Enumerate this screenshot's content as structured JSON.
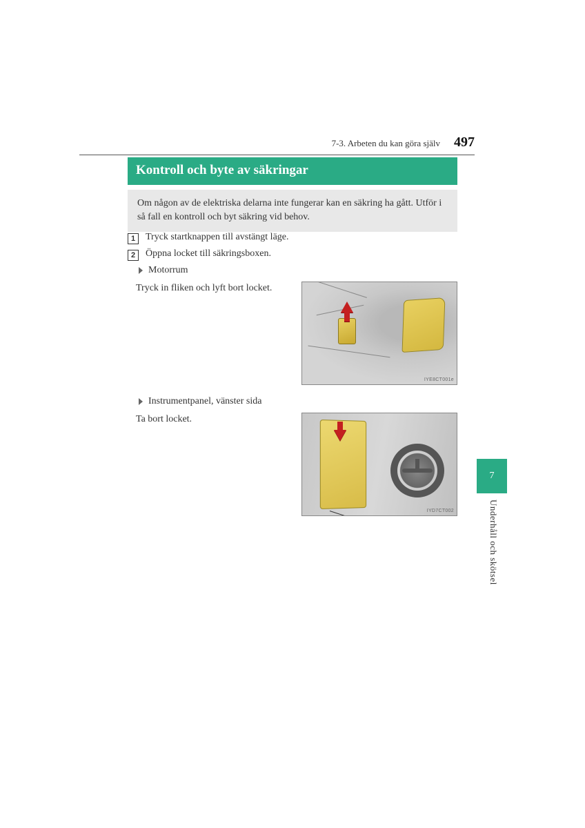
{
  "header": {
    "section_label": "7-3. Arbeten du kan göra själv",
    "page_number": "497"
  },
  "title": "Kontroll och byte av säkringar",
  "intro": "Om någon av de elektriska delarna inte fungerar kan en säkring ha gått. Utför i så fall en kontroll och byt säkring vid behov.",
  "steps": [
    {
      "num": "1",
      "text": "Tryck startknappen till avstängt läge."
    },
    {
      "num": "2",
      "text": "Öppna locket till säkringsboxen."
    }
  ],
  "subsections": [
    {
      "heading": "Motorrum",
      "body": "Tryck in fliken och lyft bort locket.",
      "figure_label": "IYE8CT001e"
    },
    {
      "heading": "Instrumentpanel, vänster sida",
      "body": "Ta bort locket.",
      "figure_label": "IYD7CT002"
    }
  ],
  "side": {
    "chapter": "7",
    "label": "Underhåll och skötsel"
  },
  "colors": {
    "accent": "#2aab85",
    "highlight": "#e8d060",
    "arrow": "#c42020",
    "intro_bg": "#e8e8e8",
    "text": "#333333"
  }
}
